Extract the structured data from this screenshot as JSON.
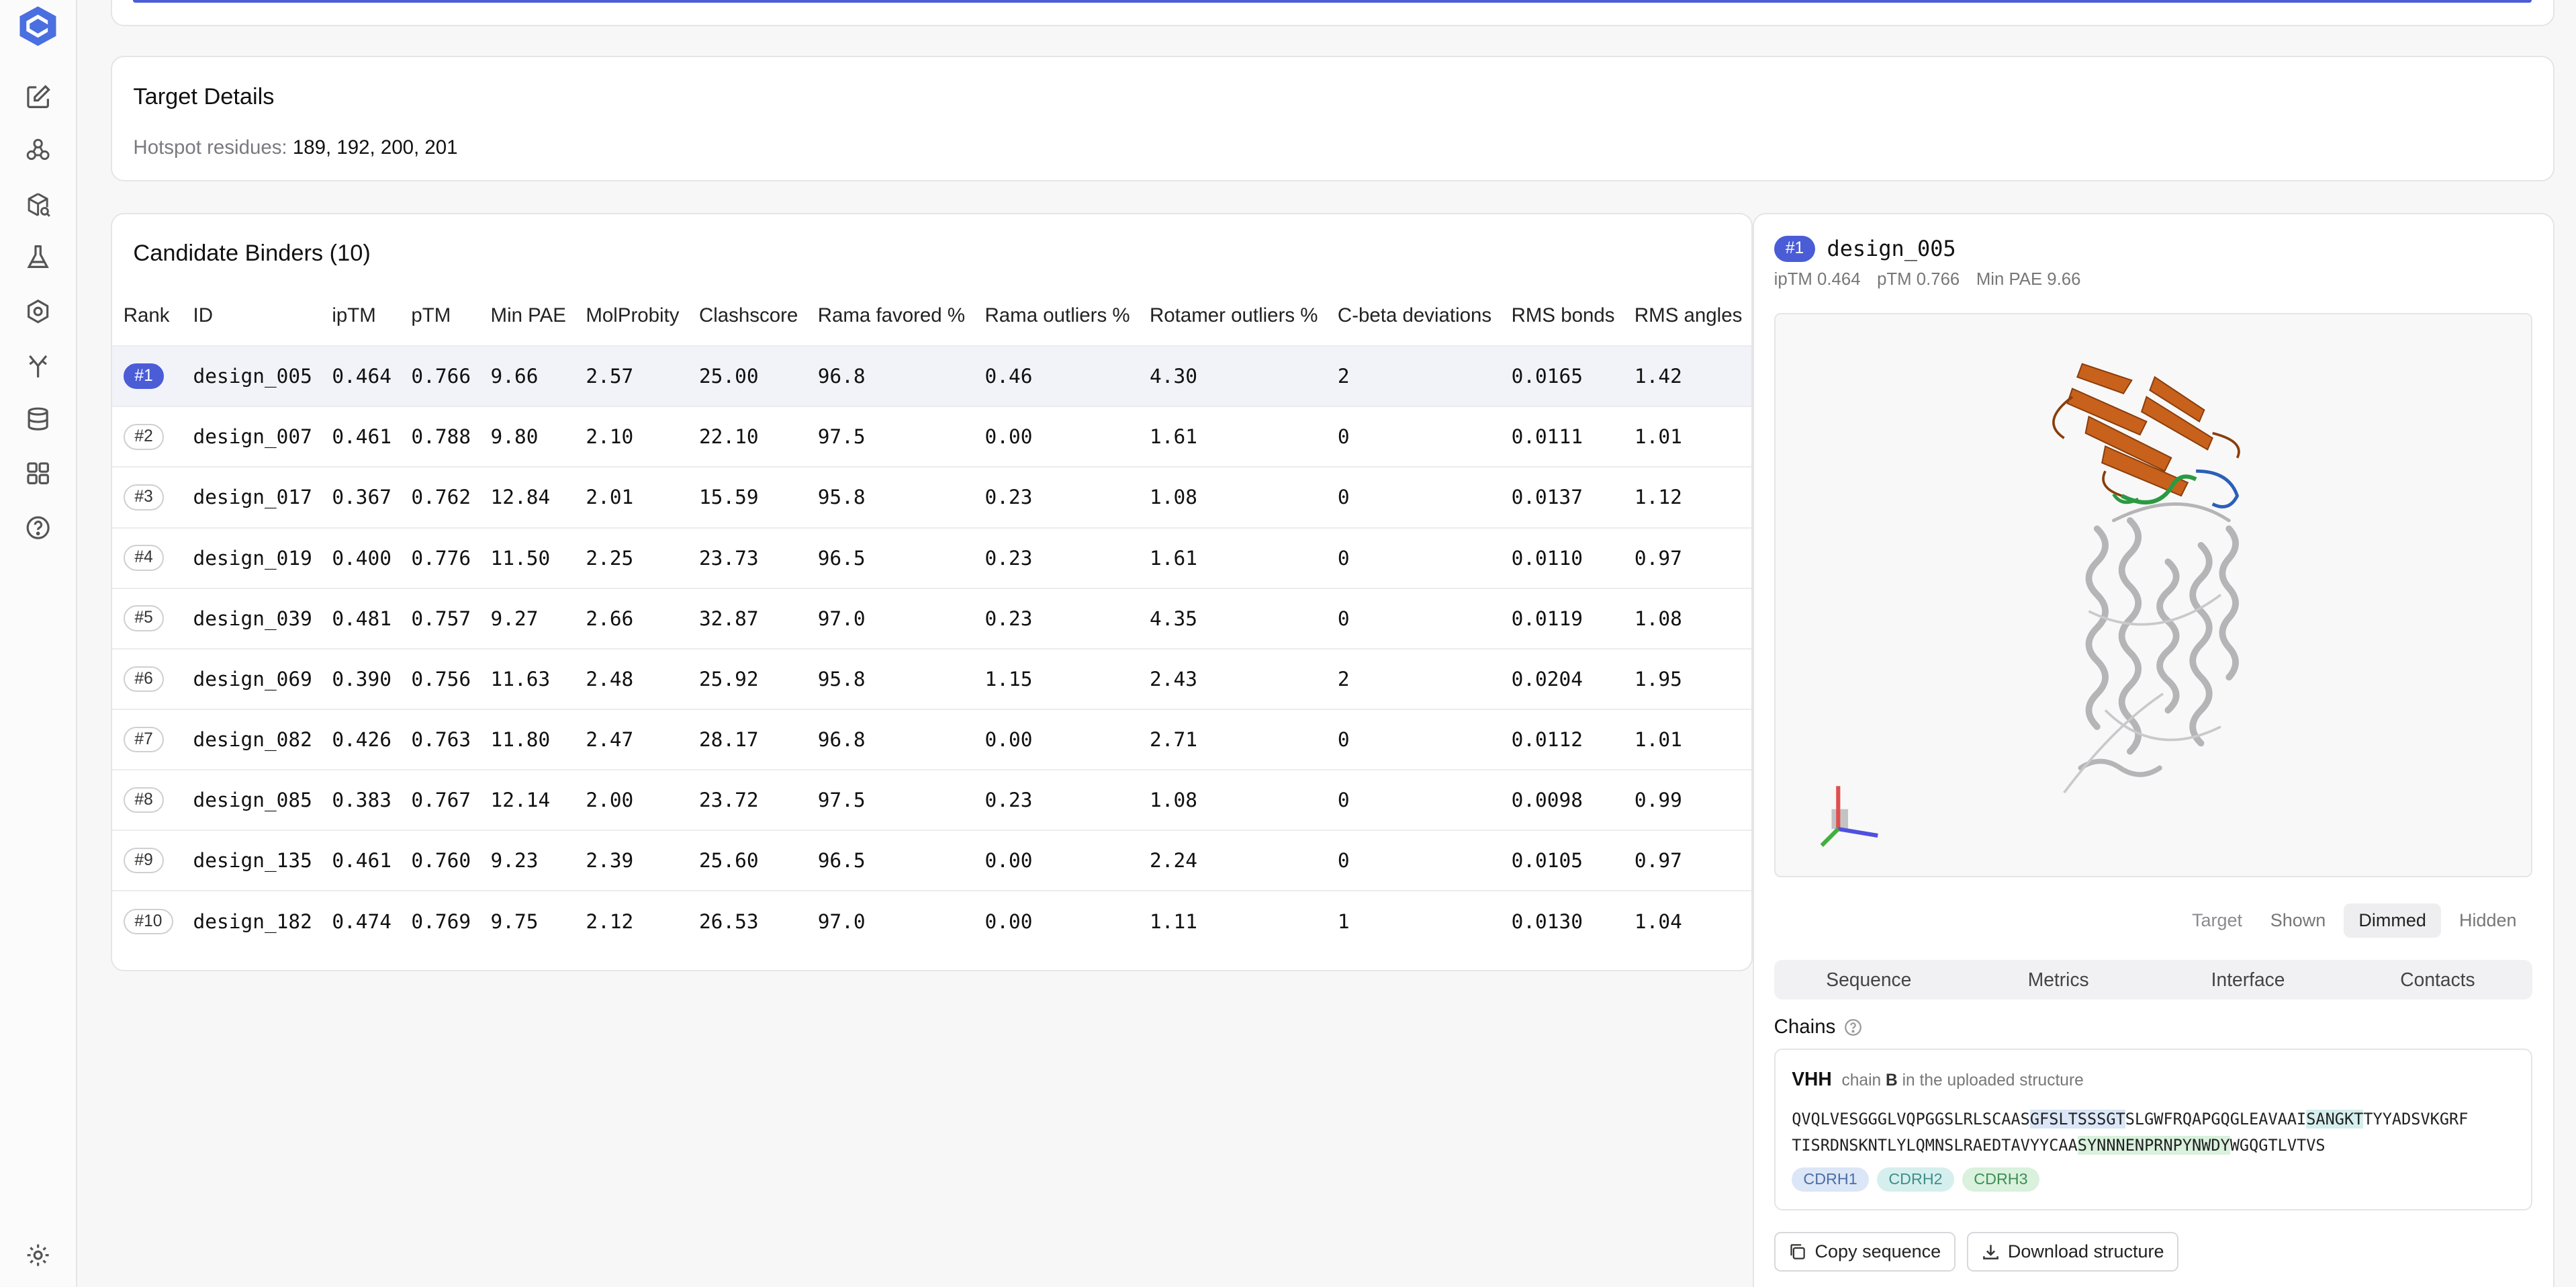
{
  "nav": {
    "items": [
      {
        "name": "edit-icon"
      },
      {
        "name": "molecules-icon"
      },
      {
        "name": "package-search-icon"
      },
      {
        "name": "flask-icon"
      },
      {
        "name": "hexagon-settings-icon"
      },
      {
        "name": "antibody-icon"
      },
      {
        "name": "layers-icon"
      },
      {
        "name": "dashboard-icon"
      },
      {
        "name": "help-circle-icon"
      }
    ],
    "bottom": {
      "name": "settings-icon"
    }
  },
  "target": {
    "title": "Target Details",
    "hotspot_label": "Hotspot residues:",
    "hotspot_value": "189, 192, 200, 201"
  },
  "binders": {
    "title": "Candidate Binders (10)",
    "columns": [
      "Rank",
      "ID",
      "ipTM",
      "pTM",
      "Min PAE",
      "MolProbity",
      "Clashscore",
      "Rama favored %",
      "Rama outliers %",
      "Rotamer outliers %",
      "C-beta deviations",
      "RMS bonds",
      "RMS angles"
    ],
    "rows": [
      {
        "rank": "#1",
        "id": "design_005",
        "iptm": "0.464",
        "ptm": "0.766",
        "min_pae": "9.66",
        "molprobity": "2.57",
        "clashscore": "25.00",
        "rama_favored": "96.8",
        "rama_outliers": "0.46",
        "rotamer_outliers": "4.30",
        "cbeta": "2",
        "rms_bonds": "0.0165",
        "rms_angles": "1.42"
      },
      {
        "rank": "#2",
        "id": "design_007",
        "iptm": "0.461",
        "ptm": "0.788",
        "min_pae": "9.80",
        "molprobity": "2.10",
        "clashscore": "22.10",
        "rama_favored": "97.5",
        "rama_outliers": "0.00",
        "rotamer_outliers": "1.61",
        "cbeta": "0",
        "rms_bonds": "0.0111",
        "rms_angles": "1.01"
      },
      {
        "rank": "#3",
        "id": "design_017",
        "iptm": "0.367",
        "ptm": "0.762",
        "min_pae": "12.84",
        "molprobity": "2.01",
        "clashscore": "15.59",
        "rama_favored": "95.8",
        "rama_outliers": "0.23",
        "rotamer_outliers": "1.08",
        "cbeta": "0",
        "rms_bonds": "0.0137",
        "rms_angles": "1.12"
      },
      {
        "rank": "#4",
        "id": "design_019",
        "iptm": "0.400",
        "ptm": "0.776",
        "min_pae": "11.50",
        "molprobity": "2.25",
        "clashscore": "23.73",
        "rama_favored": "96.5",
        "rama_outliers": "0.23",
        "rotamer_outliers": "1.61",
        "cbeta": "0",
        "rms_bonds": "0.0110",
        "rms_angles": "0.97"
      },
      {
        "rank": "#5",
        "id": "design_039",
        "iptm": "0.481",
        "ptm": "0.757",
        "min_pae": "9.27",
        "molprobity": "2.66",
        "clashscore": "32.87",
        "rama_favored": "97.0",
        "rama_outliers": "0.23",
        "rotamer_outliers": "4.35",
        "cbeta": "0",
        "rms_bonds": "0.0119",
        "rms_angles": "1.08"
      },
      {
        "rank": "#6",
        "id": "design_069",
        "iptm": "0.390",
        "ptm": "0.756",
        "min_pae": "11.63",
        "molprobity": "2.48",
        "clashscore": "25.92",
        "rama_favored": "95.8",
        "rama_outliers": "1.15",
        "rotamer_outliers": "2.43",
        "cbeta": "2",
        "rms_bonds": "0.0204",
        "rms_angles": "1.95"
      },
      {
        "rank": "#7",
        "id": "design_082",
        "iptm": "0.426",
        "ptm": "0.763",
        "min_pae": "11.80",
        "molprobity": "2.47",
        "clashscore": "28.17",
        "rama_favored": "96.8",
        "rama_outliers": "0.00",
        "rotamer_outliers": "2.71",
        "cbeta": "0",
        "rms_bonds": "0.0112",
        "rms_angles": "1.01"
      },
      {
        "rank": "#8",
        "id": "design_085",
        "iptm": "0.383",
        "ptm": "0.767",
        "min_pae": "12.14",
        "molprobity": "2.00",
        "clashscore": "23.72",
        "rama_favored": "97.5",
        "rama_outliers": "0.23",
        "rotamer_outliers": "1.08",
        "cbeta": "0",
        "rms_bonds": "0.0098",
        "rms_angles": "0.99"
      },
      {
        "rank": "#9",
        "id": "design_135",
        "iptm": "0.461",
        "ptm": "0.760",
        "min_pae": "9.23",
        "molprobity": "2.39",
        "clashscore": "25.60",
        "rama_favored": "96.5",
        "rama_outliers": "0.00",
        "rotamer_outliers": "2.24",
        "cbeta": "0",
        "rms_bonds": "0.0105",
        "rms_angles": "0.97"
      },
      {
        "rank": "#10",
        "id": "design_182",
        "iptm": "0.474",
        "ptm": "0.769",
        "min_pae": "9.75",
        "molprobity": "2.12",
        "clashscore": "26.53",
        "rama_favored": "97.0",
        "rama_outliers": "0.00",
        "rotamer_outliers": "1.11",
        "cbeta": "1",
        "rms_bonds": "0.0130",
        "rms_angles": "1.04"
      }
    ],
    "selected_index": 0
  },
  "detail": {
    "badge": "#1",
    "name": "design_005",
    "metrics": [
      "ipTM 0.464",
      "pTM 0.766",
      "Min PAE 9.66"
    ],
    "viewer": {
      "binder_color": "#c8611b",
      "target_color": "#b5b5b8",
      "cdr_colors": [
        "#2b5fb8",
        "#2a9a42"
      ]
    },
    "target_toggle": {
      "label": "Target",
      "options": [
        "Shown",
        "Dimmed",
        "Hidden"
      ],
      "selected": "Dimmed"
    },
    "tabs": [
      "Sequence",
      "Metrics",
      "Interface",
      "Contacts"
    ],
    "chains_label": "Chains",
    "chain": {
      "name": "VHH",
      "desc_prefix": "chain",
      "desc_chain": "B",
      "desc_suffix": "in the uploaded structure",
      "seq_line1": [
        {
          "text": "QVQLVESGGGLVQPGGSLRLSCAAS",
          "cls": ""
        },
        {
          "text": "GFSLTSSSGT",
          "cls": "cdr1"
        },
        {
          "text": "SLGWFRQAPGQGLEAVAAI",
          "cls": ""
        },
        {
          "text": "SANGKT",
          "cls": "cdr2"
        },
        {
          "text": "TYYADSVKGRF",
          "cls": ""
        }
      ],
      "seq_line2": [
        {
          "text": "TISRDNSKNTLYLQMNSLRAEDTAVYYCAA",
          "cls": ""
        },
        {
          "text": "SYNNNENPRNPYNWDY",
          "cls": "cdr3"
        },
        {
          "text": "WGQGTLVTVS",
          "cls": ""
        }
      ],
      "chips": [
        "CDRH1",
        "CDRH2",
        "CDRH3"
      ]
    },
    "actions": {
      "copy": "Copy sequence",
      "download": "Download structure"
    }
  }
}
